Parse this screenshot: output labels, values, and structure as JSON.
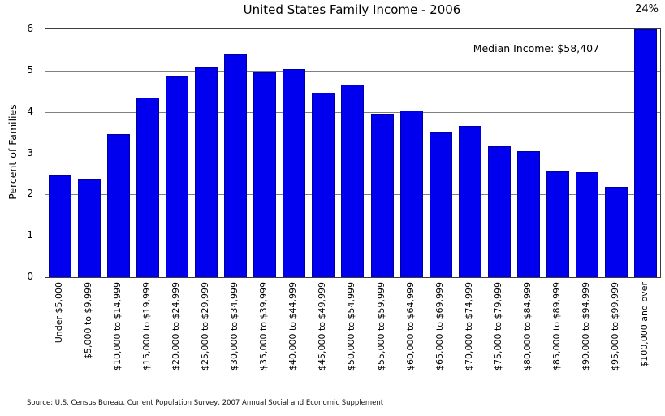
{
  "title": "United States Family Income - 2006",
  "annotations": {
    "median_income": "Median Income: $58,407",
    "top_bar_label": "24%"
  },
  "source": "Source: U.S. Census Bureau, Current Population Survey, 2007 Annual Social and Economic Supplement",
  "colors": {
    "bar_fill": "#0000ee",
    "bar_edge": "#0000a0",
    "gridline": "#808080",
    "frame": "#3c3c3c",
    "background": "#ffffff"
  },
  "chart_data": {
    "type": "bar",
    "title": "United States Family Income - 2006",
    "xlabel": "",
    "ylabel": "Percent of Families",
    "ylim": [
      0,
      6
    ],
    "yticks": [
      0,
      1,
      2,
      3,
      4,
      5,
      6
    ],
    "grid": true,
    "legend": false,
    "clip_max": 6,
    "categories": [
      "Under $5,000",
      "$5,000 to $9,999",
      "$10,000 to $14,999",
      "$15,000 to $19,999",
      "$20,000 to $24,999",
      "$25,000 to $29,999",
      "$30,000 to $34,999",
      "$35,000 to $39,999",
      "$40,000 to $44,999",
      "$45,000 to $49,999",
      "$50,000 to $54,999",
      "$55,000 to $59,999",
      "$60,000 to $64,999",
      "$65,000 to $69,999",
      "$70,000 to $74,999",
      "$75,000 to $79,999",
      "$80,000 to $84,999",
      "$85,000 to $89,999",
      "$90,000 to $94,999",
      "$95,000 to $99,999",
      "$100,000 and over"
    ],
    "values": [
      2.47,
      2.39,
      3.46,
      4.35,
      4.85,
      5.08,
      5.4,
      4.96,
      5.04,
      4.47,
      4.67,
      3.95,
      4.03,
      3.5,
      3.66,
      3.17,
      3.05,
      2.55,
      2.53,
      2.18,
      24
    ],
    "annotation": "Median Income: $58,407",
    "last_bar_label": "24%"
  }
}
